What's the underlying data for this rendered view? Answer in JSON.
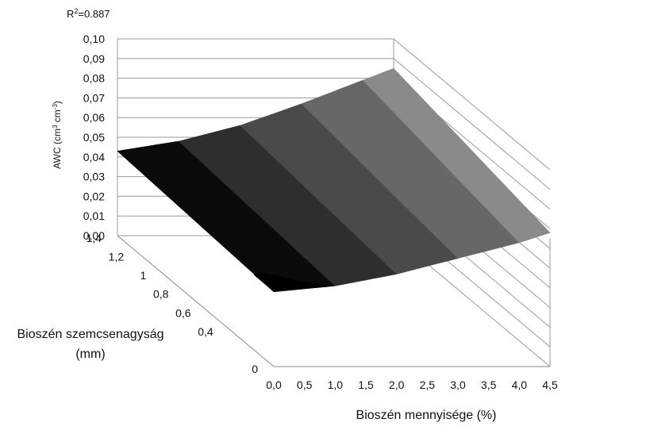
{
  "chart_data": {
    "type": "surface",
    "annotation": {
      "r2_label": "R",
      "r2_sup": "2",
      "r2_value": "=0.887"
    },
    "z_axis": {
      "title_main": "AWC (cm",
      "title_sup1": "3",
      "title_mid": " cm",
      "title_sup2": "-3",
      "title_end": ")",
      "ticks": [
        "0,00",
        "0,01",
        "0,02",
        "0,03",
        "0,04",
        "0,05",
        "0,06",
        "0,07",
        "0,08",
        "0,09",
        "0,10"
      ],
      "range": [
        0,
        0.1
      ]
    },
    "x_axis": {
      "title": "Bioszén mennyisége (%)",
      "ticks": [
        "0,0",
        "0,5",
        "1,0",
        "1,5",
        "2,0",
        "2,5",
        "3,0",
        "3,5",
        "4,0",
        "4,5"
      ],
      "range": [
        0,
        4.5
      ]
    },
    "y_axis": {
      "title_line1": "Bioszén szemcsenagyság",
      "title_line2": "(mm)",
      "ticks": [
        "0",
        "0,4",
        "0,6",
        "0,8",
        "1",
        "1,2",
        "1,4"
      ],
      "range": [
        0,
        1.4
      ]
    },
    "surface": {
      "amount_percent": [
        0,
        1.0,
        2.0,
        3.0,
        4.0,
        4.5
      ],
      "awc_at_size_1_4": [
        0.043,
        0.048,
        0.056,
        0.067,
        0.079,
        0.085
      ],
      "awc_at_size_0": [
        0.038,
        0.041,
        0.047,
        0.055,
        0.063,
        0.068
      ],
      "band_colors": [
        "#0a0a0a",
        "#2e2e2e",
        "#4a4a4a",
        "#676767",
        "#8a8a8a",
        "#b3b3b3"
      ]
    }
  }
}
